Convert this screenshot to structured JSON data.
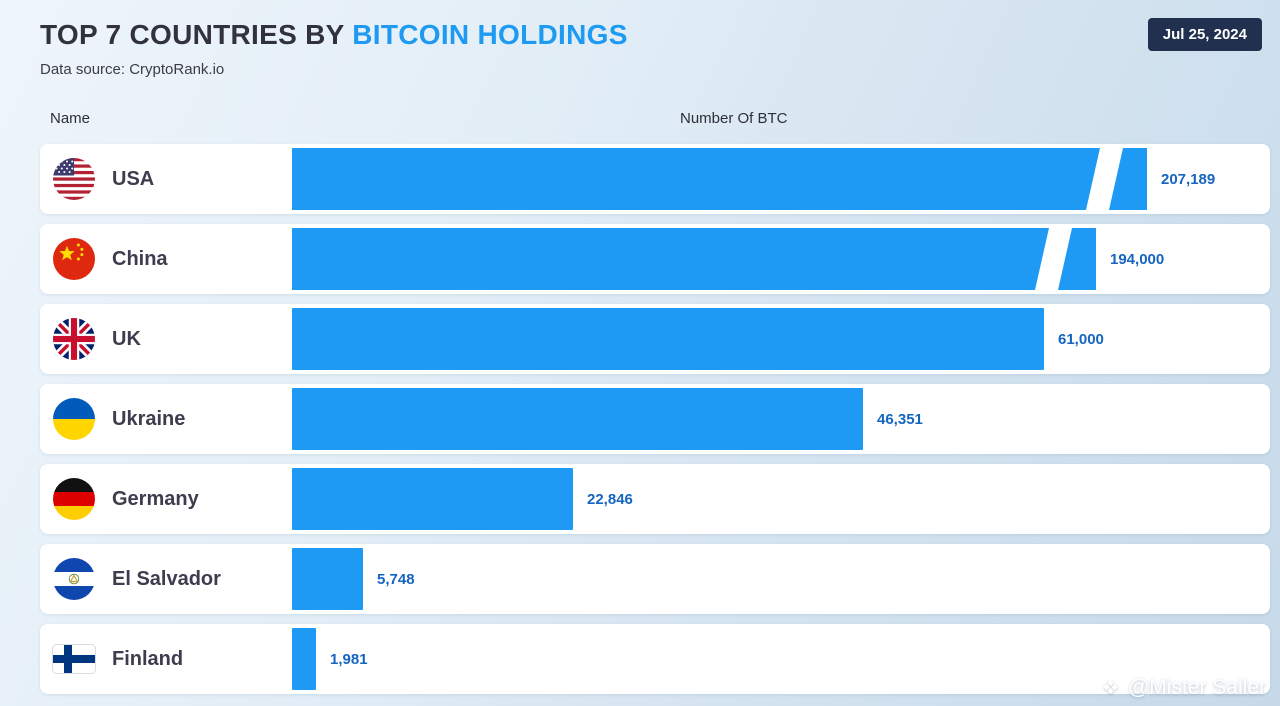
{
  "header": {
    "title_prefix": "TOP 7 COUNTRIES BY ",
    "title_highlight": "BITCOIN HOLDINGS",
    "date_badge": "Jul 25, 2024",
    "data_source": "Data source: CryptoRank.io"
  },
  "columns": {
    "name_label": "Name",
    "value_label": "Number Of BTC"
  },
  "watermark": "@Mister Sailer",
  "chart_data": {
    "type": "bar",
    "orientation": "horizontal",
    "title": "TOP 7 COUNTRIES BY BITCOIN HOLDINGS",
    "date": "Jul 25, 2024",
    "source": "CryptoRank.io",
    "xlabel": "Number Of BTC",
    "ylabel": "Name",
    "legend": false,
    "grid": false,
    "bar_color": "#1e9af5",
    "value_text_color": "#1565c0",
    "categories": [
      "USA",
      "China",
      "UK",
      "Ukraine",
      "Germany",
      "El Salvador",
      "Finland"
    ],
    "values": [
      207189,
      194000,
      61000,
      46351,
      22846,
      5748,
      1981
    ],
    "value_labels": [
      "207,189",
      "194,000",
      "61,000",
      "46,351",
      "22,846",
      "5,748",
      "1,981"
    ],
    "axis_break_note": "Bars for USA and China are truncated with a diagonal break mark",
    "rows": [
      {
        "name": "USA",
        "flag": "usa",
        "value": 207189,
        "label": "207,189",
        "axis_break": true
      },
      {
        "name": "China",
        "flag": "china",
        "value": 194000,
        "label": "194,000",
        "axis_break": true
      },
      {
        "name": "UK",
        "flag": "uk",
        "value": 61000,
        "label": "61,000",
        "axis_break": false
      },
      {
        "name": "Ukraine",
        "flag": "ukraine",
        "value": 46351,
        "label": "46,351",
        "axis_break": false
      },
      {
        "name": "Germany",
        "flag": "germany",
        "value": 22846,
        "label": "22,846",
        "axis_break": false
      },
      {
        "name": "El Salvador",
        "flag": "el-salvador",
        "value": 5748,
        "label": "5,748",
        "axis_break": false
      },
      {
        "name": "Finland",
        "flag": "finland",
        "value": 1981,
        "label": "1,981",
        "axis_break": false
      }
    ]
  }
}
